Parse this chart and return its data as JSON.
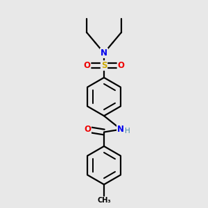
{
  "background_color": "#e8e8e8",
  "atom_colors": {
    "N": "#0000ee",
    "O": "#ee0000",
    "S": "#ccaa00",
    "C": "#000000",
    "H": "#4488aa"
  },
  "bond_color": "#000000",
  "bond_width": 1.6,
  "figsize": [
    3.0,
    3.0
  ],
  "dpi": 100
}
